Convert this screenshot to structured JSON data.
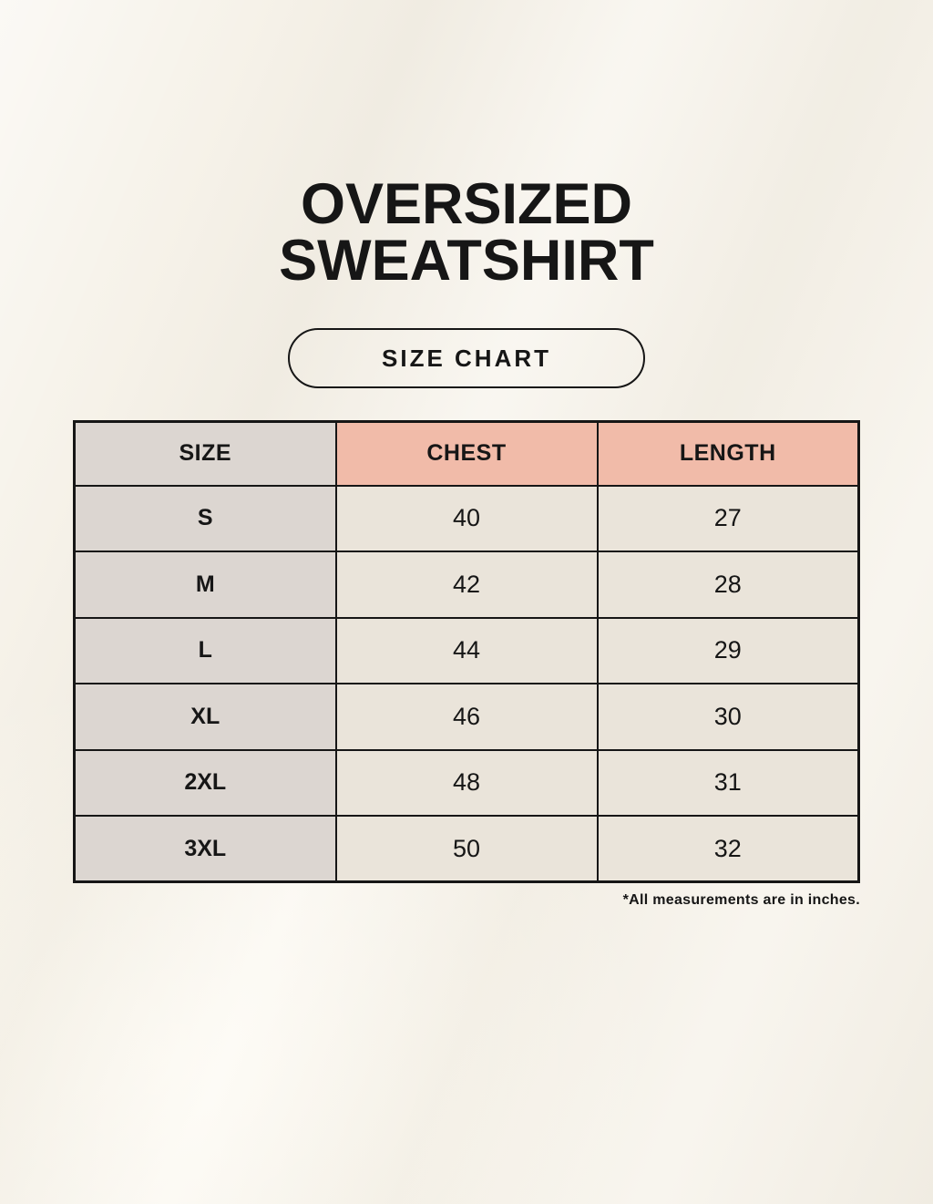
{
  "title": {
    "line1": "OVERSIZED",
    "line2": "SWEATSHIRT"
  },
  "badge": {
    "label": "SIZE CHART"
  },
  "footnote": "*All measurements are in inches.",
  "chart_data": {
    "type": "table",
    "title": "OVERSIZED SWEATSHIRT SIZE CHART",
    "columns": [
      "SIZE",
      "CHEST",
      "LENGTH"
    ],
    "rows": [
      [
        "S",
        "40",
        "27"
      ],
      [
        "M",
        "42",
        "28"
      ],
      [
        "L",
        "44",
        "29"
      ],
      [
        "XL",
        "46",
        "30"
      ],
      [
        "2XL",
        "48",
        "31"
      ],
      [
        "3XL",
        "50",
        "32"
      ]
    ],
    "units": "inches",
    "notes": "*All measurements are in inches."
  },
  "colors": {
    "page_background": "#f6f2e9",
    "header_accent_pink": "#f1bba9",
    "size_column_gray": "#dcd6d1",
    "data_cell_cream": "#eae4da",
    "ink_black": "#161616"
  }
}
